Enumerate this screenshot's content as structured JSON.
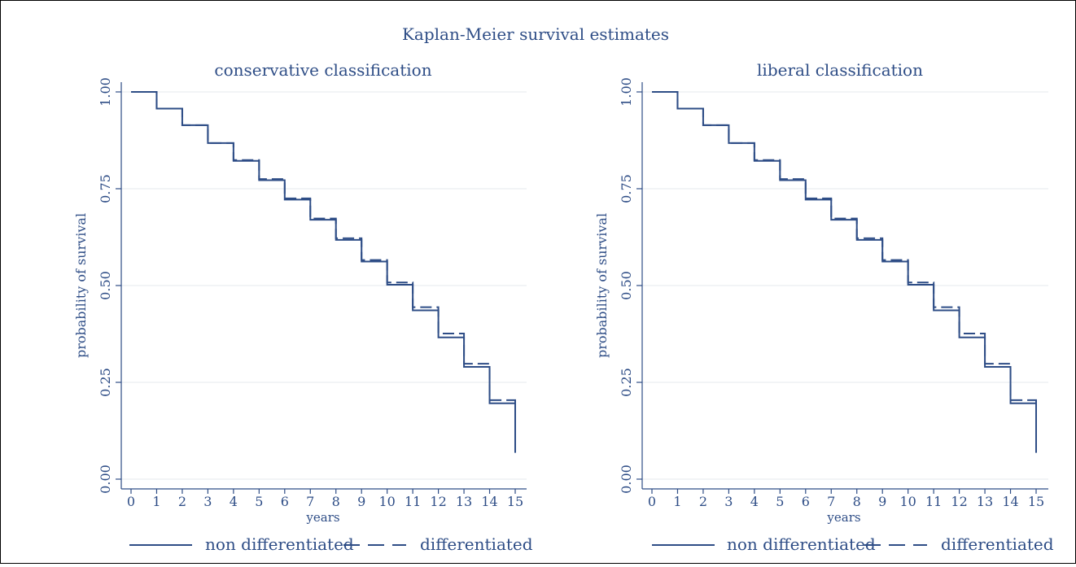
{
  "chart_data": {
    "title": "Kaplan-Meier survival estimates",
    "panels": [
      {
        "type": "line",
        "title": "conservative classification",
        "xlabel": "years",
        "ylabel": "probability of survival",
        "xlim": [
          0,
          15
        ],
        "ylim": [
          0,
          1
        ],
        "xticks": [
          "0",
          "1",
          "2",
          "3",
          "4",
          "5",
          "6",
          "7",
          "8",
          "9",
          "10",
          "11",
          "12",
          "13",
          "14",
          "15"
        ],
        "yticks": [
          "0.00",
          "0.25",
          "0.50",
          "0.75",
          "1.00"
        ],
        "grid": true,
        "series": [
          {
            "name": "non differentiated",
            "style": "solid",
            "x": [
              0,
              1,
              2,
              3,
              4,
              5,
              6,
              7,
              8,
              9,
              10,
              11,
              12,
              13,
              14,
              15
            ],
            "y": [
              1.0,
              0.957,
              0.914,
              0.868,
              0.822,
              0.772,
              0.722,
              0.67,
              0.618,
              0.562,
              0.502,
              0.436,
              0.366,
              0.29,
              0.196,
              0.068
            ]
          },
          {
            "name": "differentiated",
            "style": "dashed",
            "x": [
              0,
              1,
              2,
              3,
              4,
              5,
              6,
              7,
              8,
              9,
              10,
              11,
              12,
              13,
              14,
              15
            ],
            "y": [
              1.0,
              0.957,
              0.914,
              0.868,
              0.824,
              0.775,
              0.725,
              0.673,
              0.622,
              0.566,
              0.508,
              0.444,
              0.376,
              0.298,
              0.204,
              0.068
            ]
          }
        ]
      },
      {
        "type": "line",
        "title": "liberal classification",
        "xlabel": "years",
        "ylabel": "probability of survival",
        "xlim": [
          0,
          15
        ],
        "ylim": [
          0,
          1
        ],
        "xticks": [
          "0",
          "1",
          "2",
          "3",
          "4",
          "5",
          "6",
          "7",
          "8",
          "9",
          "10",
          "11",
          "12",
          "13",
          "14",
          "15"
        ],
        "yticks": [
          "0.00",
          "0.25",
          "0.50",
          "0.75",
          "1.00"
        ],
        "grid": true,
        "series": [
          {
            "name": "non differentiated",
            "style": "solid",
            "x": [
              0,
              1,
              2,
              3,
              4,
              5,
              6,
              7,
              8,
              9,
              10,
              11,
              12,
              13,
              14,
              15
            ],
            "y": [
              1.0,
              0.957,
              0.914,
              0.868,
              0.822,
              0.772,
              0.722,
              0.67,
              0.618,
              0.562,
              0.502,
              0.436,
              0.366,
              0.29,
              0.196,
              0.068
            ]
          },
          {
            "name": "differentiated",
            "style": "dashed",
            "x": [
              0,
              1,
              2,
              3,
              4,
              5,
              6,
              7,
              8,
              9,
              10,
              11,
              12,
              13,
              14,
              15
            ],
            "y": [
              1.0,
              0.957,
              0.914,
              0.868,
              0.824,
              0.775,
              0.725,
              0.673,
              0.622,
              0.566,
              0.508,
              0.444,
              0.376,
              0.298,
              0.204,
              0.068
            ]
          }
        ]
      }
    ],
    "legend_position": "bottom",
    "colors": {
      "line": "#2e4d86",
      "text": "#2e4d86",
      "grid": "#e4e8ee"
    }
  }
}
